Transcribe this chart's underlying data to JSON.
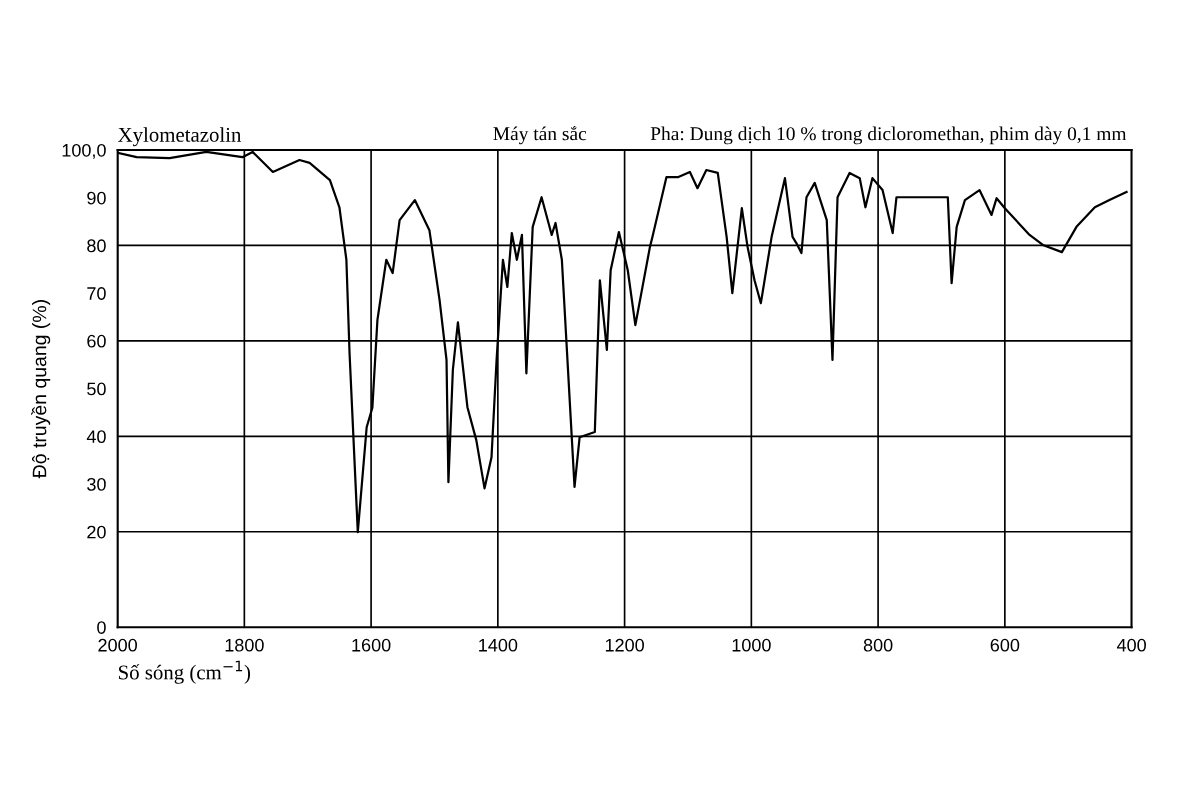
{
  "chart_data": {
    "type": "line",
    "title": "Xylometazolin",
    "annotations": [
      "Máy tán sắc",
      "Pha: Dung dịch 10 % trong dicloromethan, phim dày 0,1 mm"
    ],
    "xlabel": "Số sóng (cm$^{−1}$)",
    "ylabel": "Độ truyền quang (%)",
    "xlim": [
      2000,
      400
    ],
    "xticks": [
      2000,
      1800,
      1600,
      1400,
      1200,
      1000,
      800,
      600,
      400
    ],
    "ylim": [
      0,
      100
    ],
    "yticks": [
      0,
      20,
      30,
      40,
      50,
      60,
      70,
      80,
      90,
      {
        "value": 100,
        "label": "100,0"
      }
    ],
    "grid": "x",
    "ref_lines": [
      {
        "axis": "y",
        "value": 20,
        "color": "#000000"
      },
      {
        "axis": "y",
        "value": 40,
        "color": "#000000"
      },
      {
        "axis": "y",
        "value": 60,
        "color": "#000000"
      },
      {
        "axis": "y",
        "value": 80,
        "color": "#000000"
      }
    ],
    "series": [
      {
        "color": "#000000",
        "x": [
          2000,
          1970,
          1918,
          1860,
          1803,
          1787,
          1755,
          1713,
          1697,
          1665,
          1650,
          1639,
          1634,
          1621,
          1607,
          1598,
          1590,
          1576,
          1566,
          1555,
          1531,
          1508,
          1492,
          1481,
          1478,
          1471,
          1463,
          1448,
          1434,
          1421,
          1410,
          1402,
          1392,
          1385,
          1378,
          1370,
          1362,
          1355,
          1345,
          1331,
          1315,
          1309,
          1299,
          1279,
          1271,
          1247,
          1239,
          1228,
          1222,
          1209,
          1195,
          1183,
          1160,
          1156,
          1134,
          1116,
          1097,
          1085,
          1071,
          1053,
          1039,
          1030,
          1015,
          1006,
          995,
          985,
          968,
          947,
          935,
          929,
          921,
          913,
          900,
          881,
          872,
          864,
          845,
          829,
          820,
          809,
          793,
          777,
          771,
          690,
          684,
          676,
          663,
          640,
          621,
          613,
          600,
          561,
          540,
          510,
          487,
          458,
          435,
          408
        ],
        "values": [
          99.4,
          98.5,
          98.3,
          99.6,
          98.5,
          99.6,
          95.4,
          97.9,
          97.3,
          93.7,
          88,
          77,
          57.4,
          19.9,
          41.9,
          46,
          64.4,
          77,
          74.2,
          85.3,
          89.5,
          83.2,
          68.6,
          56,
          30.4,
          53.9,
          63.9,
          46.1,
          39.2,
          29.1,
          35.6,
          56,
          77,
          71.3,
          82.6,
          77,
          82.2,
          53.2,
          83.9,
          90.1,
          82.2,
          84.7,
          77,
          29.4,
          39.8,
          40.9,
          72.7,
          58.1,
          74.8,
          82.8,
          74.8,
          63.3,
          79.7,
          81.8,
          94.3,
          94.3,
          95.4,
          92,
          95.8,
          95.2,
          81.8,
          70,
          87.8,
          79.7,
          72.7,
          67.9,
          81.8,
          94.1,
          81.8,
          80.5,
          78.4,
          90.1,
          93.1,
          85.3,
          56,
          90.1,
          95.2,
          94.1,
          88,
          94.1,
          91.6,
          82.6,
          90.1,
          90.1,
          72.1,
          83.9,
          89.5,
          91.6,
          86.4,
          89.9,
          87.8,
          82.2,
          80.1,
          78.6,
          83.9,
          88,
          89.5,
          91.2
        ]
      }
    ]
  }
}
